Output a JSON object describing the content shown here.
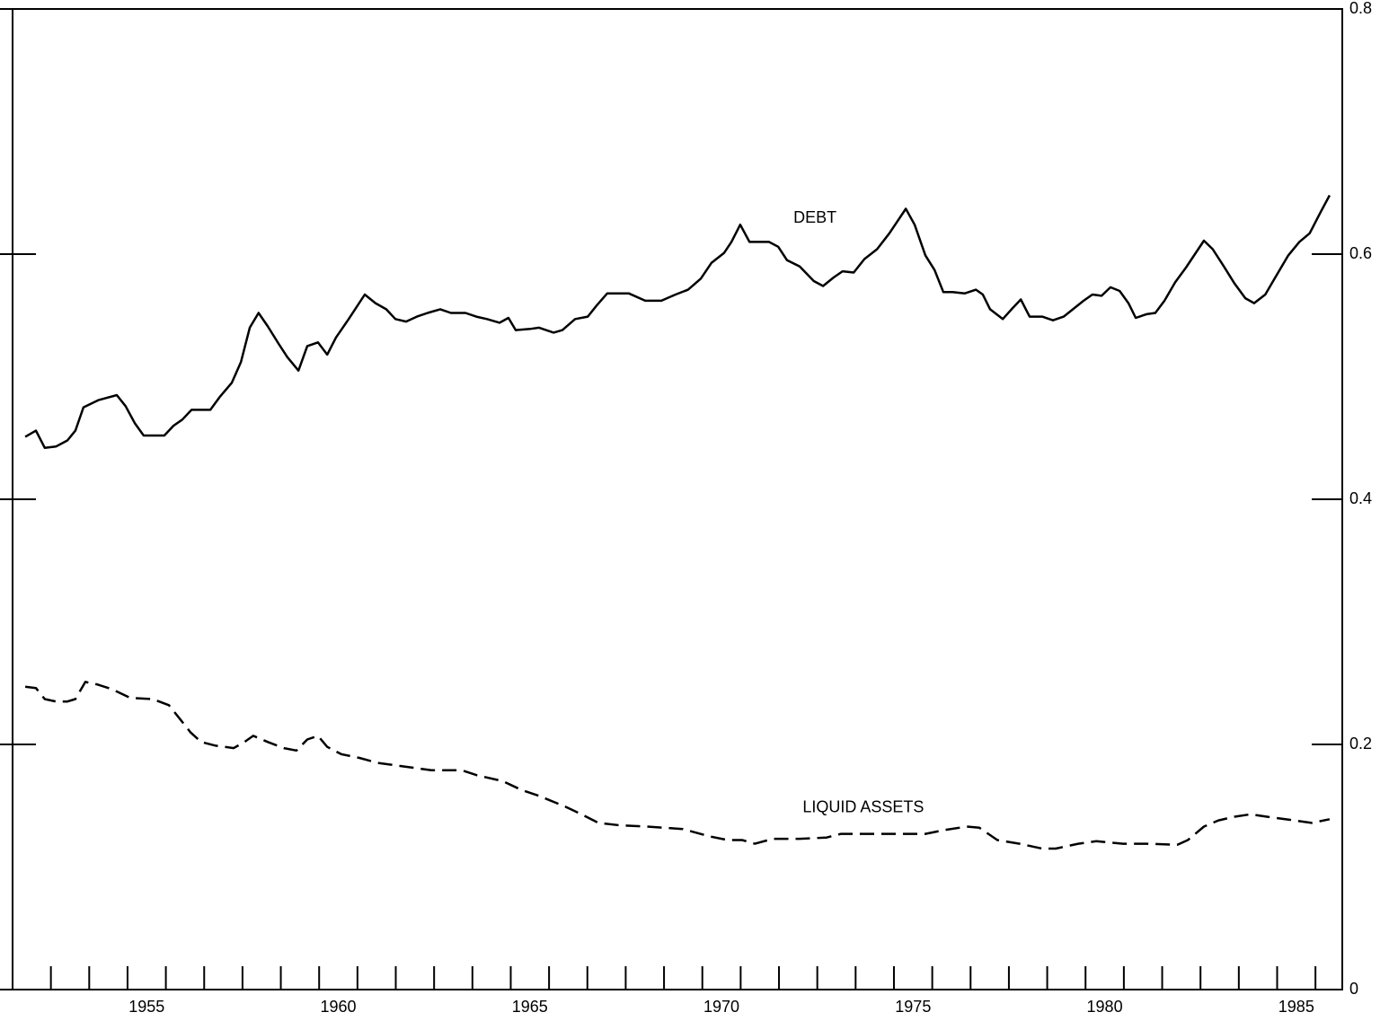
{
  "chart_data": {
    "type": "line",
    "xlim": [
      1952,
      1986.7
    ],
    "xticks": [
      {
        "value": 1955.5,
        "label": "1955"
      },
      {
        "value": 1960.5,
        "label": "1960"
      },
      {
        "value": 1965.5,
        "label": "1965"
      },
      {
        "value": 1970.5,
        "label": "1970"
      },
      {
        "value": 1975.5,
        "label": "1975"
      },
      {
        "value": 1980.5,
        "label": "1980"
      },
      {
        "value": 1985.5,
        "label": "1985"
      }
    ],
    "xminorticks": [
      1953,
      1954,
      1955,
      1956,
      1957,
      1958,
      1959,
      1960,
      1961,
      1962,
      1963,
      1964,
      1965,
      1966,
      1967,
      1968,
      1969,
      1970,
      1971,
      1972,
      1973,
      1974,
      1975,
      1976,
      1977,
      1978,
      1979,
      1980,
      1981,
      1982,
      1983,
      1984,
      1985,
      1986
    ],
    "ylim": [
      0,
      0.8
    ],
    "yticks": [
      0,
      0.2,
      0.4,
      0.6,
      0.8
    ],
    "series": [
      {
        "name": "DEBT",
        "color": "#000000",
        "dashed": false,
        "label_at": [
          1972.94,
          0.629
        ],
        "x": [
          1952.33,
          1952.61,
          1952.84,
          1953.13,
          1953.43,
          1953.64,
          1953.85,
          1954.25,
          1954.72,
          1954.95,
          1955.19,
          1955.42,
          1955.96,
          1956.2,
          1956.43,
          1956.67,
          1957.16,
          1957.42,
          1957.72,
          1957.96,
          1958.19,
          1958.42,
          1958.66,
          1958.94,
          1959.17,
          1959.46,
          1959.69,
          1959.97,
          1960.21,
          1960.44,
          1960.77,
          1961.19,
          1961.47,
          1961.75,
          1961.99,
          1962.27,
          1962.55,
          1962.83,
          1963.16,
          1963.44,
          1963.82,
          1964.1,
          1964.38,
          1964.71,
          1964.94,
          1965.13,
          1965.51,
          1965.74,
          1966.12,
          1966.35,
          1966.68,
          1967.01,
          1967.24,
          1967.52,
          1968.08,
          1968.51,
          1968.93,
          1969.3,
          1969.63,
          1969.96,
          1970.24,
          1970.57,
          1970.76,
          1970.99,
          1971.23,
          1971.74,
          1971.98,
          1972.21,
          1972.54,
          1972.91,
          1973.15,
          1973.43,
          1973.66,
          1973.95,
          1974.23,
          1974.56,
          1974.88,
          1975.31,
          1975.54,
          1975.82,
          1976.06,
          1976.29,
          1976.53,
          1976.85,
          1977.14,
          1977.32,
          1977.51,
          1977.84,
          1978.07,
          1978.31,
          1978.54,
          1978.87,
          1979.15,
          1979.43,
          1979.67,
          1979.95,
          1980.18,
          1980.42,
          1980.65,
          1980.89,
          1981.12,
          1981.31,
          1981.59,
          1981.82,
          1982.06,
          1982.34,
          1982.62,
          1983.09,
          1983.32,
          1983.61,
          1983.89,
          1984.17,
          1984.4,
          1984.69,
          1984.97,
          1985.29,
          1985.58,
          1985.85,
          1986.13,
          1986.37
        ],
        "values": [
          0.451,
          0.456,
          0.442,
          0.443,
          0.448,
          0.456,
          0.475,
          0.481,
          0.485,
          0.476,
          0.462,
          0.452,
          0.452,
          0.46,
          0.465,
          0.473,
          0.473,
          0.484,
          0.495,
          0.512,
          0.54,
          0.552,
          0.541,
          0.527,
          0.516,
          0.505,
          0.525,
          0.528,
          0.518,
          0.532,
          0.547,
          0.567,
          0.56,
          0.555,
          0.547,
          0.545,
          0.549,
          0.552,
          0.555,
          0.552,
          0.552,
          0.549,
          0.547,
          0.544,
          0.548,
          0.538,
          0.539,
          0.54,
          0.536,
          0.538,
          0.547,
          0.549,
          0.558,
          0.568,
          0.568,
          0.562,
          0.562,
          0.567,
          0.571,
          0.58,
          0.593,
          0.601,
          0.61,
          0.624,
          0.61,
          0.61,
          0.606,
          0.595,
          0.59,
          0.578,
          0.574,
          0.581,
          0.586,
          0.585,
          0.596,
          0.604,
          0.617,
          0.637,
          0.624,
          0.599,
          0.587,
          0.569,
          0.569,
          0.568,
          0.571,
          0.567,
          0.555,
          0.547,
          0.555,
          0.563,
          0.549,
          0.549,
          0.546,
          0.549,
          0.555,
          0.562,
          0.567,
          0.566,
          0.573,
          0.57,
          0.56,
          0.548,
          0.551,
          0.552,
          0.562,
          0.577,
          0.589,
          0.611,
          0.604,
          0.59,
          0.576,
          0.564,
          0.56,
          0.567,
          0.582,
          0.599,
          0.61,
          0.617,
          0.634,
          0.648
        ]
      },
      {
        "name": "LIQUID ASSETS",
        "color": "#000000",
        "dashed": true,
        "label_at": [
          1974.2,
          0.148
        ],
        "x": [
          1952.33,
          1952.61,
          1952.84,
          1953.13,
          1953.43,
          1953.64,
          1953.9,
          1954.2,
          1954.6,
          1955.07,
          1955.66,
          1956.08,
          1956.36,
          1956.64,
          1956.92,
          1957.3,
          1957.77,
          1958.05,
          1958.28,
          1958.66,
          1959.08,
          1959.41,
          1959.69,
          1959.97,
          1960.21,
          1960.58,
          1961.05,
          1961.52,
          1962.22,
          1962.93,
          1963.72,
          1964.1,
          1964.8,
          1965.27,
          1965.74,
          1966.44,
          1966.91,
          1967.29,
          1967.85,
          1968.55,
          1969.49,
          1970.19,
          1970.66,
          1971.04,
          1971.37,
          1971.84,
          1972.54,
          1973.24,
          1973.62,
          1974.18,
          1975.12,
          1975.82,
          1976.29,
          1976.9,
          1977.23,
          1977.7,
          1978.28,
          1978.87,
          1979.22,
          1979.81,
          1980.28,
          1980.98,
          1981.36,
          1981.68,
          1982.39,
          1982.67,
          1983.09,
          1983.47,
          1983.89,
          1984.31,
          1984.73,
          1985.44,
          1985.9,
          1986.37
        ],
        "values": [
          0.247,
          0.246,
          0.237,
          0.235,
          0.235,
          0.237,
          0.251,
          0.249,
          0.245,
          0.238,
          0.237,
          0.232,
          0.221,
          0.21,
          0.202,
          0.199,
          0.197,
          0.202,
          0.207,
          0.202,
          0.197,
          0.195,
          0.204,
          0.207,
          0.198,
          0.192,
          0.189,
          0.185,
          0.182,
          0.179,
          0.179,
          0.175,
          0.17,
          0.163,
          0.158,
          0.149,
          0.142,
          0.136,
          0.134,
          0.133,
          0.131,
          0.125,
          0.122,
          0.122,
          0.119,
          0.123,
          0.123,
          0.124,
          0.127,
          0.127,
          0.127,
          0.127,
          0.13,
          0.133,
          0.132,
          0.122,
          0.119,
          0.115,
          0.115,
          0.119,
          0.121,
          0.119,
          0.119,
          0.119,
          0.118,
          0.122,
          0.133,
          0.138,
          0.141,
          0.143,
          0.141,
          0.138,
          0.136,
          0.139
        ]
      }
    ]
  }
}
